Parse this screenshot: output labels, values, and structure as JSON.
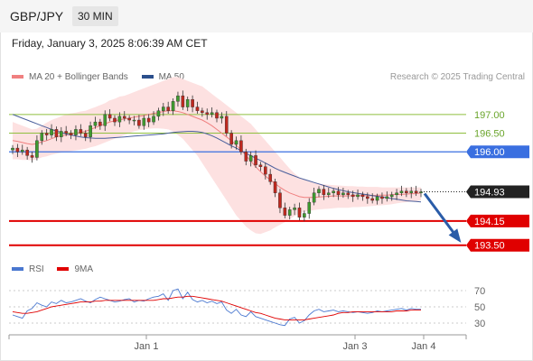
{
  "header": {
    "symbol": "GBP/JPY",
    "timeframe": "30 MIN",
    "datetime": "Friday, January 3, 2025 8:06:39 AM CET",
    "credit": "Research © 2025 Trading Central"
  },
  "legend_main": [
    {
      "label": "MA 20 + Bollinger Bands",
      "color": "#f08080"
    },
    {
      "label": "MA 50",
      "color": "#2b4f8c"
    }
  ],
  "legend_rsi": [
    {
      "label": "RSI",
      "color": "#4a78d0"
    },
    {
      "label": "9MA",
      "color": "#e00000"
    }
  ],
  "chart_data": [
    {
      "type": "candlestick",
      "ylim": [
        193.3,
        197.6
      ],
      "x_tick_labels": [
        "Jan 1",
        "Jan 3",
        "Jan 4"
      ],
      "levels": [
        {
          "value": 197.0,
          "label": "197.00",
          "kind": "resistance",
          "color": "#8fbf3f"
        },
        {
          "value": 196.5,
          "label": "196.50",
          "kind": "resistance",
          "color": "#8fbf3f"
        },
        {
          "value": 196.0,
          "label": "196.00",
          "kind": "pivot",
          "color": "#3a6fe0"
        },
        {
          "value": 194.93,
          "label": "194.93",
          "kind": "last-price",
          "color": "#222222"
        },
        {
          "value": 194.15,
          "label": "194.15",
          "kind": "support",
          "color": "#e00000"
        },
        {
          "value": 193.5,
          "label": "193.50",
          "kind": "support",
          "color": "#e00000"
        }
      ],
      "close": [
        196.1,
        196.0,
        196.05,
        195.9,
        195.85,
        196.3,
        196.5,
        196.45,
        196.6,
        196.4,
        196.55,
        196.5,
        196.45,
        196.6,
        196.5,
        196.4,
        196.7,
        196.8,
        196.7,
        197.0,
        196.9,
        196.8,
        196.95,
        196.9,
        196.85,
        196.85,
        196.7,
        196.9,
        196.8,
        196.95,
        197.1,
        197.2,
        197.1,
        197.35,
        197.5,
        197.2,
        197.4,
        197.2,
        197.1,
        197.05,
        197.0,
        197.05,
        196.9,
        196.95,
        196.5,
        196.2,
        196.3,
        196.0,
        195.75,
        195.9,
        195.65,
        195.6,
        195.4,
        195.2,
        194.9,
        194.5,
        194.3,
        194.45,
        194.5,
        194.25,
        194.35,
        194.65,
        194.9,
        195.0,
        194.85,
        194.9,
        194.95,
        194.85,
        194.9,
        194.85,
        194.8,
        194.85,
        194.8,
        194.75,
        194.7,
        194.8,
        194.75,
        194.8,
        194.85,
        194.9,
        194.95,
        194.9,
        194.95,
        194.9,
        194.93
      ],
      "ma20": [
        196.3,
        196.28,
        196.25,
        196.22,
        196.2,
        196.22,
        196.27,
        196.3,
        196.35,
        196.4,
        196.43,
        196.45,
        196.48,
        196.5,
        196.52,
        196.55,
        196.6,
        196.65,
        196.7,
        196.75,
        196.8,
        196.83,
        196.86,
        196.88,
        196.9,
        196.93,
        196.95,
        196.97,
        197.0,
        197.03,
        197.05,
        197.08,
        197.1,
        197.1,
        197.08,
        197.05,
        197.0,
        196.95,
        196.9,
        196.85,
        196.78,
        196.7,
        196.6,
        196.5,
        196.4,
        196.3,
        196.18,
        196.05,
        195.9,
        195.75,
        195.6,
        195.47,
        195.35,
        195.25,
        195.15,
        195.05,
        194.97,
        194.9,
        194.85,
        194.8,
        194.78,
        194.78,
        194.78,
        194.79,
        194.8,
        194.81,
        194.82,
        194.82,
        194.82,
        194.82,
        194.83,
        194.83,
        194.83,
        194.83,
        194.83,
        194.84,
        194.84,
        194.84,
        194.85,
        194.86,
        194.86,
        194.87,
        194.88,
        194.88,
        194.9
      ],
      "bb_upper": [
        196.8,
        196.75,
        196.7,
        196.65,
        196.6,
        196.62,
        196.7,
        196.78,
        196.85,
        196.9,
        196.95,
        197.0,
        197.03,
        197.05,
        197.08,
        197.1,
        197.15,
        197.2,
        197.25,
        197.3,
        197.38,
        197.42,
        197.48,
        197.5,
        197.55,
        197.6,
        197.65,
        197.7,
        197.75,
        197.8,
        197.85,
        197.9,
        197.95,
        198.0,
        198.0,
        197.95,
        197.9,
        197.85,
        197.8,
        197.75,
        197.65,
        197.55,
        197.45,
        197.35,
        197.25,
        197.15,
        197.05,
        196.95,
        196.85,
        196.75,
        196.6,
        196.45,
        196.3,
        196.15,
        196.0,
        195.85,
        195.7,
        195.55,
        195.42,
        195.32,
        195.25,
        195.2,
        195.17,
        195.15,
        195.13,
        195.12,
        195.11,
        195.1,
        195.09,
        195.08,
        195.08,
        195.07,
        195.07,
        195.06,
        195.06,
        195.06,
        195.05,
        195.05,
        195.05,
        195.05,
        195.05,
        195.05,
        195.05,
        195.05,
        195.05
      ],
      "bb_lower": [
        195.8,
        195.8,
        195.78,
        195.78,
        195.77,
        195.8,
        195.85,
        195.88,
        195.92,
        195.95,
        195.98,
        196.0,
        196.02,
        196.04,
        196.06,
        196.08,
        196.12,
        196.15,
        196.2,
        196.25,
        196.3,
        196.35,
        196.4,
        196.45,
        196.5,
        196.55,
        196.58,
        196.6,
        196.62,
        196.63,
        196.63,
        196.62,
        196.6,
        196.55,
        196.45,
        196.35,
        196.2,
        196.05,
        195.9,
        195.7,
        195.5,
        195.3,
        195.1,
        194.9,
        194.7,
        194.5,
        194.3,
        194.15,
        194.0,
        193.9,
        193.82,
        193.8,
        193.85,
        193.9,
        193.98,
        194.05,
        194.12,
        194.2,
        194.28,
        194.35,
        194.4,
        194.42,
        194.44,
        194.46,
        194.47,
        194.48,
        194.49,
        194.5,
        194.5,
        194.5,
        194.52,
        194.52,
        194.53,
        194.54,
        194.55,
        194.56,
        194.57,
        194.58,
        194.6,
        194.62,
        194.64,
        194.65,
        194.67,
        194.68,
        194.7
      ],
      "ma50": [
        197.0,
        196.95,
        196.9,
        196.85,
        196.8,
        196.75,
        196.7,
        196.65,
        196.6,
        196.56,
        196.52,
        196.48,
        196.45,
        196.42,
        196.4,
        196.38,
        196.37,
        196.36,
        196.36,
        196.36,
        196.37,
        196.38,
        196.39,
        196.4,
        196.41,
        196.42,
        196.43,
        196.44,
        196.45,
        196.46,
        196.47,
        196.48,
        196.5,
        196.52,
        196.53,
        196.54,
        196.55,
        196.55,
        196.54,
        196.52,
        196.48,
        196.43,
        196.37,
        196.3,
        196.23,
        196.16,
        196.1,
        196.03,
        195.96,
        195.9,
        195.83,
        195.77,
        195.7,
        195.63,
        195.56,
        195.5,
        195.45,
        195.4,
        195.35,
        195.3,
        195.26,
        195.22,
        195.18,
        195.14,
        195.1,
        195.06,
        195.02,
        194.99,
        194.96,
        194.93,
        194.91,
        194.89,
        194.87,
        194.85,
        194.83,
        194.81,
        194.79,
        194.77,
        194.75,
        194.73,
        194.71,
        194.69,
        194.68,
        194.67,
        194.66
      ]
    },
    {
      "type": "line",
      "ylim": [
        20,
        80
      ],
      "y_tick_labels": [
        "70",
        "50",
        "30"
      ],
      "series": [
        {
          "name": "RSI",
          "values": [
            40,
            38,
            36,
            45,
            48,
            55,
            52,
            50,
            56,
            54,
            58,
            55,
            56,
            58,
            60,
            57,
            55,
            59,
            62,
            60,
            58,
            56,
            57,
            59,
            60,
            56,
            58,
            57,
            60,
            62,
            63,
            66,
            58,
            70,
            72,
            60,
            68,
            59,
            56,
            58,
            55,
            57,
            54,
            56,
            46,
            42,
            47,
            40,
            38,
            44,
            38,
            36,
            34,
            32,
            30,
            28,
            27,
            35,
            37,
            30,
            33,
            40,
            45,
            47,
            44,
            45,
            46,
            44,
            45,
            44,
            43,
            44,
            43,
            42,
            43,
            45,
            44,
            45,
            46,
            47,
            48,
            46,
            48,
            47,
            47
          ]
        },
        {
          "name": "9MA",
          "values": [
            44,
            43,
            42,
            42,
            43,
            44,
            46,
            48,
            50,
            51,
            52,
            53,
            54,
            55,
            56,
            56,
            56,
            57,
            57,
            58,
            58,
            58,
            58,
            58,
            58,
            58,
            58,
            58,
            58,
            58,
            59,
            60,
            60,
            61,
            62,
            62,
            63,
            63,
            62,
            61,
            60,
            59,
            58,
            57,
            55,
            53,
            51,
            49,
            47,
            45,
            43,
            42,
            40,
            38,
            36,
            35,
            34,
            34,
            34,
            34,
            34,
            35,
            36,
            37,
            38,
            39,
            40,
            42,
            43,
            43,
            44,
            44,
            44,
            44,
            44,
            44,
            44,
            44,
            44,
            45,
            45,
            45,
            46,
            46,
            46
          ]
        }
      ]
    }
  ]
}
